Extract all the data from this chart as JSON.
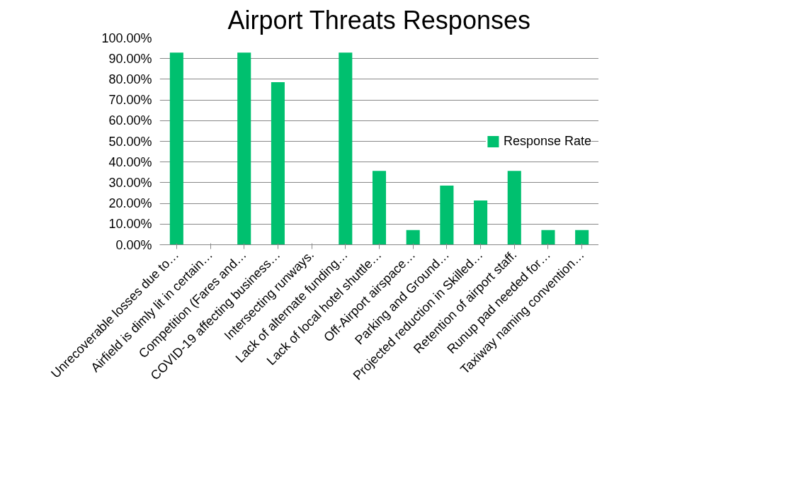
{
  "chart_data": {
    "type": "bar",
    "title": "Airport Threats Responses",
    "categories": [
      "Unrecoverable losses due to…",
      "Airfield is dimly lit in certain…",
      "Competition (Fares and…",
      "COVID-19 affecting business…",
      "Intersecting runways.",
      "Lack of alternate funding…",
      "Lack of local hotel shuttle…",
      "Off-Airport airspace…",
      "Parking and Ground…",
      "Projected reduction in Skilled…",
      "Retention of airport staff.",
      "Runup pad needed for…",
      "Taxiway naming convention…"
    ],
    "series": [
      {
        "name": "Response Rate",
        "color": "#00c06f",
        "values": [
          92.9,
          0,
          92.9,
          78.6,
          0,
          92.9,
          35.7,
          7.1,
          28.6,
          21.4,
          35.7,
          7.1,
          7.1
        ]
      }
    ],
    "ylim": [
      0,
      100
    ],
    "yticks": [
      {
        "value": 0,
        "label": "0.00%"
      },
      {
        "value": 10,
        "label": "10.00%"
      },
      {
        "value": 20,
        "label": "20.00%"
      },
      {
        "value": 30,
        "label": "30.00%"
      },
      {
        "value": 40,
        "label": "40.00%"
      },
      {
        "value": 50,
        "label": "50.00%"
      },
      {
        "value": 60,
        "label": "60.00%"
      },
      {
        "value": 70,
        "label": "70.00%"
      },
      {
        "value": 80,
        "label": "80.00%"
      },
      {
        "value": 90,
        "label": "90.00%"
      },
      {
        "value": 100,
        "label": "100.00%"
      }
    ],
    "grid": "y",
    "legend": "right"
  }
}
